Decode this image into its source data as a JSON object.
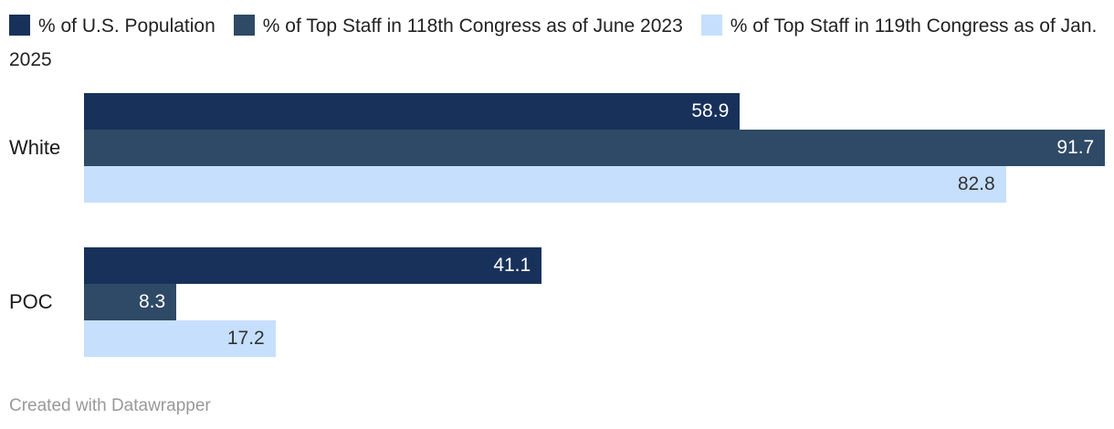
{
  "chart_data": {
    "type": "bar",
    "orientation": "horizontal",
    "categories": [
      "White",
      "POC"
    ],
    "series": [
      {
        "name": "% of U.S. Population",
        "color": "#18315A",
        "value_text_color": "#FFFFFF",
        "values": [
          58.9,
          41.1
        ]
      },
      {
        "name": "% of Top Staff in 118th Congress as of June 2023",
        "color": "#2F4A66",
        "value_text_color": "#FFFFFF",
        "values": [
          91.7,
          8.3
        ]
      },
      {
        "name": "% of Top Staff in 119th Congress as of Jan. 2025",
        "color": "#C6DFFC",
        "value_text_color": "#333333",
        "values": [
          82.8,
          17.2
        ]
      }
    ],
    "axis_max": 92.5,
    "xlim": [
      0,
      92.5
    ],
    "grid": false,
    "legend_position": "top",
    "value_labels": "inside-end"
  },
  "footer": {
    "credit": "Created with Datawrapper"
  }
}
